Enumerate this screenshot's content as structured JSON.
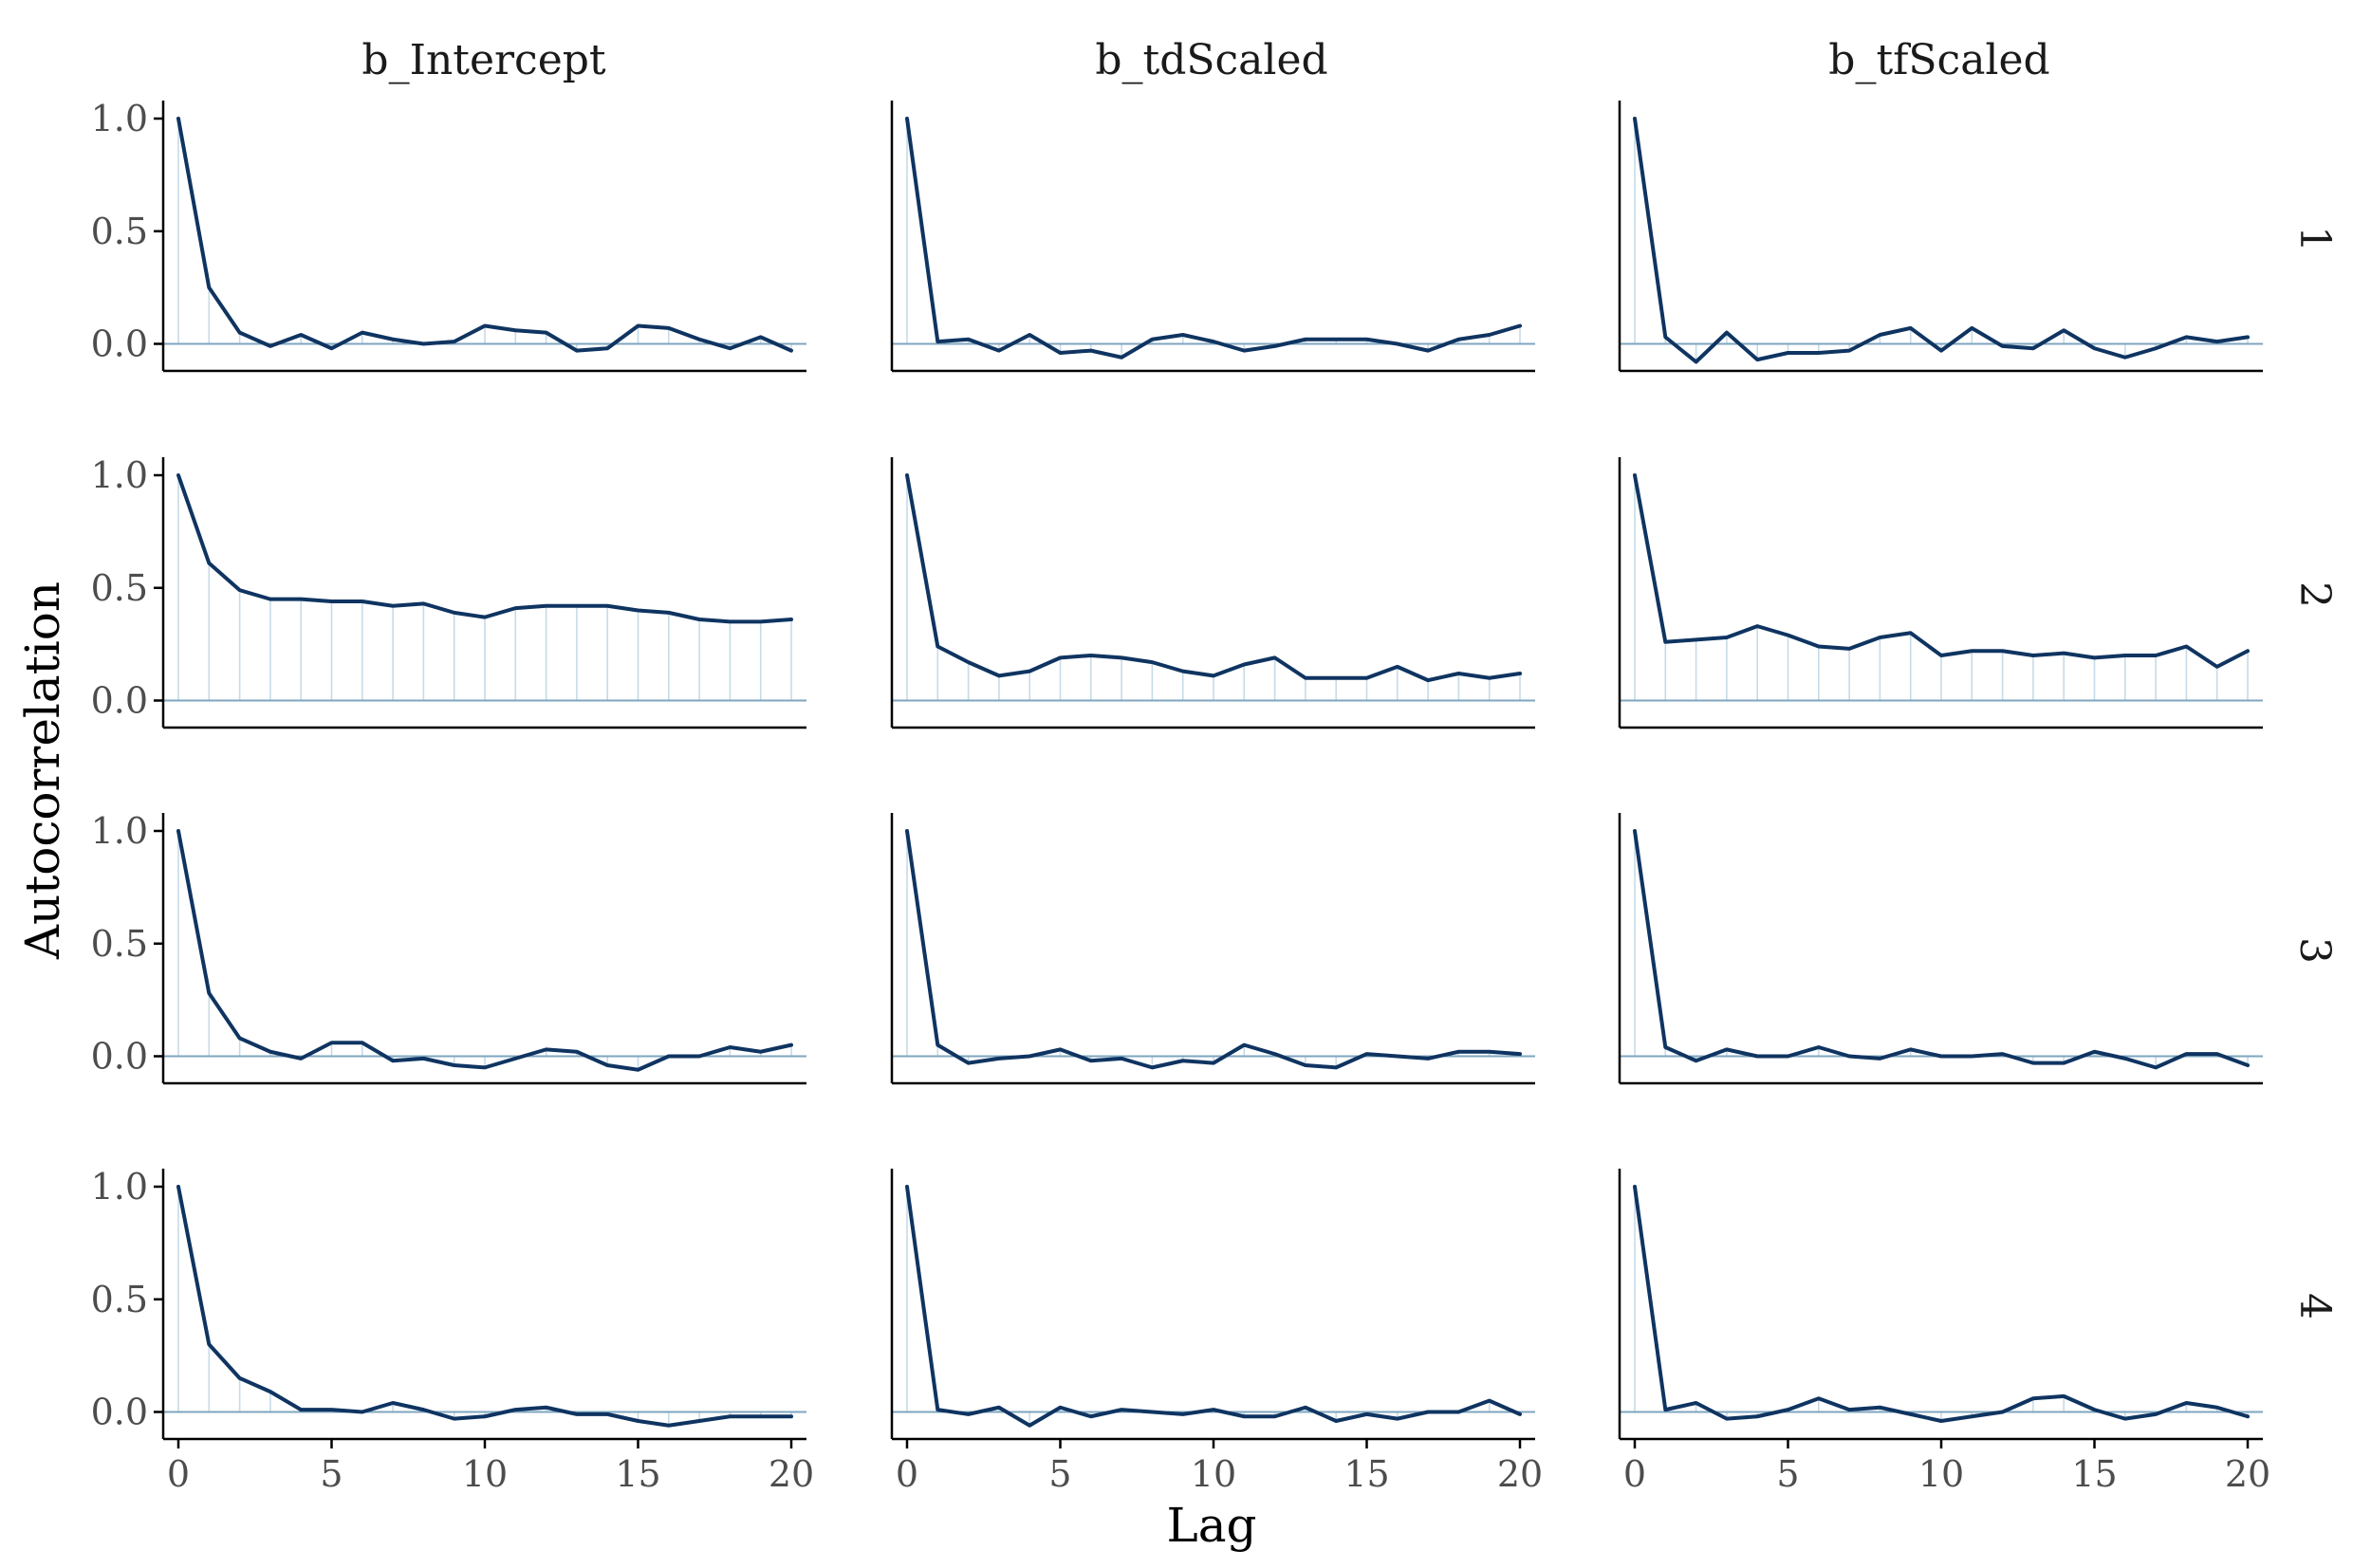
{
  "chart_data": {
    "type": "line",
    "xlabel": "Lag",
    "ylabel": "Autocorrelation",
    "xlim": [
      0,
      20
    ],
    "ylim": [
      -0.12,
      1.08
    ],
    "x_ticks": [
      0,
      5,
      10,
      15,
      20
    ],
    "y_ticks": [
      0.0,
      0.5,
      1.0
    ],
    "x_tick_labels": [
      "0",
      "5",
      "10",
      "15",
      "20"
    ],
    "y_tick_labels": [
      "0.0",
      "0.5",
      "1.0"
    ],
    "columns": [
      "b_Intercept",
      "b_tdScaled",
      "b_tfScaled"
    ],
    "rows": [
      "1",
      "2",
      "3",
      "4"
    ],
    "grid": false,
    "colors": {
      "line": "#0f3461",
      "lag_bar": "#c6dbe8",
      "zero_line": "#7fa6bf",
      "axis": "#000000"
    },
    "lags": [
      0,
      1,
      2,
      3,
      4,
      5,
      6,
      7,
      8,
      9,
      10,
      11,
      12,
      13,
      14,
      15,
      16,
      17,
      18,
      19,
      20
    ],
    "panels": [
      {
        "row": "1",
        "column": "b_Intercept",
        "values": [
          1.0,
          0.25,
          0.05,
          -0.01,
          0.04,
          -0.02,
          0.05,
          0.02,
          0.0,
          0.01,
          0.08,
          0.06,
          0.05,
          -0.03,
          -0.02,
          0.08,
          0.07,
          0.02,
          -0.02,
          0.03,
          -0.03
        ]
      },
      {
        "row": "1",
        "column": "b_tdScaled",
        "values": [
          1.0,
          0.01,
          0.02,
          -0.03,
          0.04,
          -0.04,
          -0.03,
          -0.06,
          0.02,
          0.04,
          0.01,
          -0.03,
          -0.01,
          0.02,
          0.02,
          0.02,
          0.0,
          -0.03,
          0.02,
          0.04,
          0.08
        ]
      },
      {
        "row": "1",
        "column": "b_tfScaled",
        "values": [
          1.0,
          0.03,
          -0.08,
          0.05,
          -0.07,
          -0.04,
          -0.04,
          -0.03,
          0.04,
          0.07,
          -0.03,
          0.07,
          -0.01,
          -0.02,
          0.06,
          -0.02,
          -0.06,
          -0.02,
          0.03,
          0.01,
          0.03
        ]
      },
      {
        "row": "2",
        "column": "b_Intercept",
        "values": [
          1.0,
          0.61,
          0.49,
          0.45,
          0.45,
          0.44,
          0.44,
          0.42,
          0.43,
          0.39,
          0.37,
          0.41,
          0.42,
          0.42,
          0.42,
          0.4,
          0.39,
          0.36,
          0.35,
          0.35,
          0.36
        ]
      },
      {
        "row": "2",
        "column": "b_tdScaled",
        "values": [
          1.0,
          0.24,
          0.17,
          0.11,
          0.13,
          0.19,
          0.2,
          0.19,
          0.17,
          0.13,
          0.11,
          0.16,
          0.19,
          0.1,
          0.1,
          0.1,
          0.15,
          0.09,
          0.12,
          0.1,
          0.12
        ]
      },
      {
        "row": "2",
        "column": "b_tfScaled",
        "values": [
          1.0,
          0.26,
          0.27,
          0.28,
          0.33,
          0.29,
          0.24,
          0.23,
          0.28,
          0.3,
          0.2,
          0.22,
          0.22,
          0.2,
          0.21,
          0.19,
          0.2,
          0.2,
          0.24,
          0.15,
          0.22
        ]
      },
      {
        "row": "3",
        "column": "b_Intercept",
        "values": [
          1.0,
          0.28,
          0.08,
          0.02,
          -0.01,
          0.06,
          0.06,
          -0.02,
          -0.01,
          -0.04,
          -0.05,
          -0.01,
          0.03,
          0.02,
          -0.04,
          -0.06,
          0.0,
          0.0,
          0.04,
          0.02,
          0.05
        ]
      },
      {
        "row": "3",
        "column": "b_tdScaled",
        "values": [
          1.0,
          0.05,
          -0.03,
          -0.01,
          0.0,
          0.03,
          -0.02,
          -0.01,
          -0.05,
          -0.02,
          -0.03,
          0.05,
          0.01,
          -0.04,
          -0.05,
          0.01,
          0.0,
          -0.01,
          0.02,
          0.02,
          0.01
        ]
      },
      {
        "row": "3",
        "column": "b_tfScaled",
        "values": [
          1.0,
          0.04,
          -0.02,
          0.03,
          0.0,
          0.0,
          0.04,
          0.0,
          -0.01,
          0.03,
          0.0,
          0.0,
          0.01,
          -0.03,
          -0.03,
          0.02,
          -0.01,
          -0.05,
          0.01,
          0.01,
          -0.04
        ]
      },
      {
        "row": "4",
        "column": "b_Intercept",
        "values": [
          1.0,
          0.3,
          0.15,
          0.09,
          0.01,
          0.01,
          0.0,
          0.04,
          0.01,
          -0.03,
          -0.02,
          0.01,
          0.02,
          -0.01,
          -0.01,
          -0.04,
          -0.06,
          -0.04,
          -0.02,
          -0.02,
          -0.02
        ]
      },
      {
        "row": "4",
        "column": "b_tdScaled",
        "values": [
          1.0,
          0.01,
          -0.01,
          0.02,
          -0.06,
          0.02,
          -0.02,
          0.01,
          0.0,
          -0.01,
          0.01,
          -0.02,
          -0.02,
          0.02,
          -0.04,
          -0.01,
          -0.03,
          0.0,
          0.0,
          0.05,
          -0.01
        ]
      },
      {
        "row": "4",
        "column": "b_tfScaled",
        "values": [
          1.0,
          0.01,
          0.04,
          -0.03,
          -0.02,
          0.01,
          0.06,
          0.01,
          0.02,
          -0.01,
          -0.04,
          -0.02,
          0.0,
          0.06,
          0.07,
          0.01,
          -0.03,
          -0.01,
          0.04,
          0.02,
          -0.02
        ]
      }
    ]
  }
}
